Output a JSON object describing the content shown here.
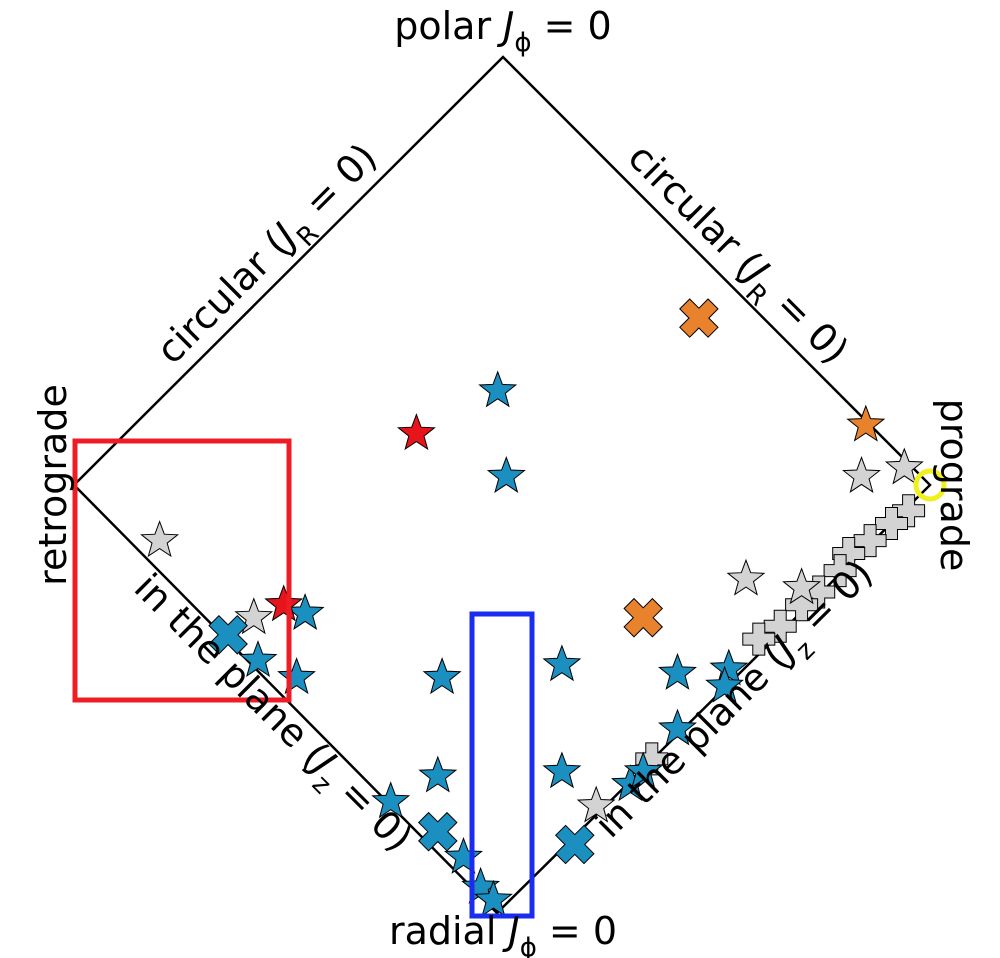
{
  "chart_data": {
    "type": "scatter",
    "xlim": [
      -1,
      1
    ],
    "ylim": [
      -1,
      1
    ],
    "labels": {
      "top": [
        {
          "t": "polar "
        },
        {
          "t": "J",
          "italic": true
        },
        {
          "t": "ϕ",
          "sub": true
        },
        {
          "t": " = 0"
        }
      ],
      "bottom": [
        {
          "t": "radial "
        },
        {
          "t": "J",
          "italic": true
        },
        {
          "t": "ϕ",
          "sub": true
        },
        {
          "t": " = 0"
        }
      ],
      "left": [
        {
          "t": "retrograde"
        }
      ],
      "right": [
        {
          "t": "prograde"
        }
      ],
      "upper_left": [
        {
          "t": "circular ("
        },
        {
          "t": "J",
          "italic": true
        },
        {
          "t": "R",
          "sub": true
        },
        {
          "t": " = 0)"
        }
      ],
      "upper_right": [
        {
          "t": "circular ("
        },
        {
          "t": "J",
          "italic": true
        },
        {
          "t": "R",
          "sub": true
        },
        {
          "t": " = 0)"
        }
      ],
      "lower_left": [
        {
          "t": "in the plane ("
        },
        {
          "t": "J",
          "italic": true
        },
        {
          "t": "z",
          "sub": true
        },
        {
          "t": " = 0)"
        }
      ],
      "lower_right": [
        {
          "t": "in the plane ("
        },
        {
          "t": "J",
          "italic": true
        },
        {
          "t": "z",
          "sub": true
        },
        {
          "t": " = 0)"
        }
      ]
    },
    "series": [
      {
        "marker": "plus",
        "color": "#d3d3d3",
        "x": [
          0.95,
          0.91,
          0.86,
          0.81,
          0.79,
          0.74,
          0.7,
          0.65,
          0.6,
          0.35
        ],
        "values": [
          -0.06,
          -0.09,
          -0.13,
          -0.16,
          -0.2,
          -0.25,
          -0.28,
          -0.33,
          -0.36,
          -0.64
        ]
      },
      {
        "marker": "star",
        "color": "#d3d3d3",
        "x": [
          -0.8,
          -0.58,
          0.84,
          0.57,
          0.7,
          0.22,
          0.94
        ],
        "values": [
          -0.13,
          -0.31,
          0.02,
          -0.22,
          -0.24,
          -0.75,
          0.04
        ]
      },
      {
        "marker": "star",
        "color": "#1a8fc0",
        "x": [
          -0.01,
          0.01,
          -0.46,
          -0.57,
          -0.48,
          -0.14,
          0.14,
          -0.15,
          0.14,
          -0.26,
          -0.09,
          -0.05,
          -0.02,
          0.41,
          0.53,
          0.52,
          0.41,
          0.3,
          0.33
        ],
        "values": [
          0.22,
          0.02,
          -0.3,
          -0.41,
          -0.45,
          -0.45,
          -0.42,
          -0.68,
          -0.67,
          -0.74,
          -0.87,
          -0.94,
          -0.97,
          -0.44,
          -0.43,
          -0.47,
          -0.57,
          -0.7,
          -0.67
        ]
      },
      {
        "marker": "x",
        "color": "#1a8fc0",
        "x": [
          -0.64,
          -0.15,
          0.17
        ],
        "values": [
          -0.35,
          -0.81,
          -0.84
        ]
      },
      {
        "marker": "x",
        "color": "#e8822c",
        "x": [
          0.46,
          0.33
        ],
        "values": [
          0.39,
          -0.31
        ]
      },
      {
        "marker": "star",
        "color": "#e8822c",
        "x": [
          0.85
        ],
        "values": [
          0.14
        ]
      },
      {
        "marker": "star",
        "color": "#e8141c",
        "x": [
          -0.2,
          -0.51
        ],
        "values": [
          0.12,
          -0.28
        ]
      },
      {
        "marker": "circle",
        "color": "#f0f020",
        "x": [
          1.0
        ],
        "values": [
          0.0
        ]
      }
    ]
  }
}
